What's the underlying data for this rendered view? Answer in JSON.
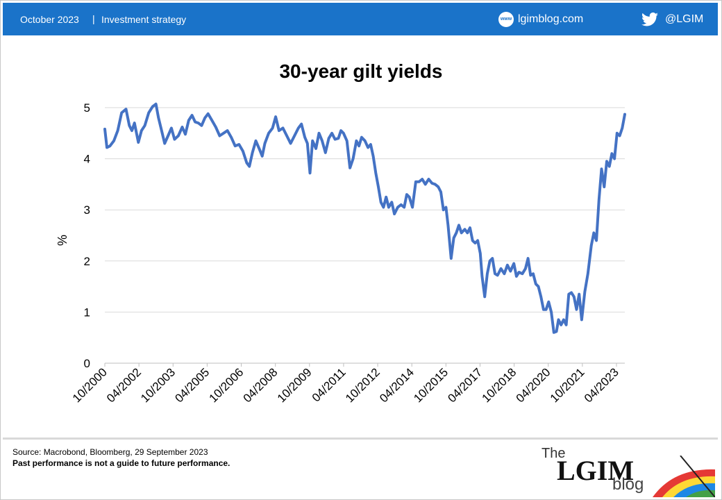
{
  "header": {
    "date": "October 2023",
    "separator": "|",
    "category": "Investment strategy",
    "website_icon": "www",
    "website": "lgimblog.com",
    "twitter_icon": "twitter-bird-icon",
    "twitter": "@LGIM"
  },
  "chart_data": {
    "type": "line",
    "title": "30-year gilt yields",
    "xlabel": "",
    "ylabel": "%",
    "ylim": [
      0,
      5
    ],
    "yticks": [
      "0",
      "1",
      "2",
      "3",
      "4",
      "5"
    ],
    "xticks": [
      "10/2000",
      "04/2002",
      "10/2003",
      "04/2005",
      "10/2006",
      "04/2008",
      "10/2009",
      "04/2011",
      "10/2012",
      "04/2014",
      "10/2015",
      "04/2017",
      "10/2018",
      "04/2020",
      "10/2021",
      "04/2023"
    ],
    "grid": true,
    "line_color": "#4472c4",
    "series": [
      {
        "points": [
          [
            0,
            4.58
          ],
          [
            0.08,
            4.22
          ],
          [
            0.2,
            4.25
          ],
          [
            0.35,
            4.35
          ],
          [
            0.5,
            4.55
          ],
          [
            0.65,
            4.9
          ],
          [
            0.82,
            4.97
          ],
          [
            0.95,
            4.65
          ],
          [
            1.05,
            4.55
          ],
          [
            1.15,
            4.7
          ],
          [
            1.3,
            4.32
          ],
          [
            1.42,
            4.55
          ],
          [
            1.55,
            4.65
          ],
          [
            1.7,
            4.9
          ],
          [
            1.85,
            5.02
          ],
          [
            1.98,
            5.07
          ],
          [
            2.08,
            4.8
          ],
          [
            2.2,
            4.55
          ],
          [
            2.32,
            4.3
          ],
          [
            2.45,
            4.45
          ],
          [
            2.58,
            4.6
          ],
          [
            2.7,
            4.38
          ],
          [
            2.85,
            4.45
          ],
          [
            3.0,
            4.62
          ],
          [
            3.12,
            4.48
          ],
          [
            3.25,
            4.75
          ],
          [
            3.38,
            4.85
          ],
          [
            3.5,
            4.72
          ],
          [
            3.62,
            4.7
          ],
          [
            3.75,
            4.65
          ],
          [
            3.88,
            4.8
          ],
          [
            4.0,
            4.88
          ],
          [
            4.15,
            4.75
          ],
          [
            4.3,
            4.62
          ],
          [
            4.45,
            4.45
          ],
          [
            4.6,
            4.5
          ],
          [
            4.75,
            4.55
          ],
          [
            4.9,
            4.42
          ],
          [
            5.05,
            4.25
          ],
          [
            5.2,
            4.28
          ],
          [
            5.35,
            4.15
          ],
          [
            5.5,
            3.92
          ],
          [
            5.6,
            3.85
          ],
          [
            5.72,
            4.12
          ],
          [
            5.85,
            4.35
          ],
          [
            5.98,
            4.2
          ],
          [
            6.1,
            4.05
          ],
          [
            6.2,
            4.3
          ],
          [
            6.35,
            4.5
          ],
          [
            6.5,
            4.6
          ],
          [
            6.62,
            4.82
          ],
          [
            6.75,
            4.55
          ],
          [
            6.9,
            4.6
          ],
          [
            7.05,
            4.45
          ],
          [
            7.2,
            4.3
          ],
          [
            7.35,
            4.45
          ],
          [
            7.5,
            4.6
          ],
          [
            7.62,
            4.68
          ],
          [
            7.75,
            4.42
          ],
          [
            7.85,
            4.3
          ],
          [
            7.95,
            3.72
          ],
          [
            8.05,
            4.35
          ],
          [
            8.18,
            4.2
          ],
          [
            8.3,
            4.5
          ],
          [
            8.42,
            4.35
          ],
          [
            8.55,
            4.12
          ],
          [
            8.68,
            4.4
          ],
          [
            8.8,
            4.5
          ],
          [
            8.92,
            4.38
          ],
          [
            9.05,
            4.4
          ],
          [
            9.15,
            4.55
          ],
          [
            9.25,
            4.5
          ],
          [
            9.38,
            4.35
          ],
          [
            9.5,
            3.82
          ],
          [
            9.62,
            4.0
          ],
          [
            9.75,
            4.35
          ],
          [
            9.85,
            4.25
          ],
          [
            9.95,
            4.42
          ],
          [
            10.08,
            4.35
          ],
          [
            10.2,
            4.22
          ],
          [
            10.3,
            4.28
          ],
          [
            10.4,
            4.05
          ],
          [
            10.5,
            3.72
          ],
          [
            10.6,
            3.45
          ],
          [
            10.7,
            3.15
          ],
          [
            10.8,
            3.05
          ],
          [
            10.9,
            3.25
          ],
          [
            11.0,
            3.05
          ],
          [
            11.12,
            3.15
          ],
          [
            11.22,
            2.92
          ],
          [
            11.35,
            3.05
          ],
          [
            11.48,
            3.1
          ],
          [
            11.6,
            3.05
          ],
          [
            11.7,
            3.3
          ],
          [
            11.8,
            3.25
          ],
          [
            11.92,
            3.05
          ],
          [
            12.05,
            3.55
          ],
          [
            12.18,
            3.55
          ],
          [
            12.3,
            3.6
          ],
          [
            12.42,
            3.5
          ],
          [
            12.55,
            3.6
          ],
          [
            12.68,
            3.52
          ],
          [
            12.8,
            3.5
          ],
          [
            12.92,
            3.45
          ],
          [
            13.02,
            3.35
          ],
          [
            13.12,
            3.0
          ],
          [
            13.22,
            3.05
          ],
          [
            13.3,
            2.7
          ],
          [
            13.42,
            2.05
          ],
          [
            13.52,
            2.45
          ],
          [
            13.62,
            2.55
          ],
          [
            13.72,
            2.7
          ],
          [
            13.82,
            2.55
          ],
          [
            13.95,
            2.62
          ],
          [
            14.05,
            2.55
          ],
          [
            14.15,
            2.65
          ],
          [
            14.25,
            2.4
          ],
          [
            14.35,
            2.35
          ],
          [
            14.45,
            2.4
          ],
          [
            14.55,
            2.15
          ],
          [
            14.62,
            1.7
          ],
          [
            14.72,
            1.3
          ],
          [
            14.82,
            1.75
          ],
          [
            14.92,
            2.0
          ],
          [
            15.02,
            2.05
          ],
          [
            15.12,
            1.75
          ],
          [
            15.22,
            1.72
          ],
          [
            15.35,
            1.85
          ],
          [
            15.48,
            1.75
          ],
          [
            15.6,
            1.92
          ],
          [
            15.72,
            1.8
          ],
          [
            15.85,
            1.95
          ],
          [
            15.95,
            1.7
          ],
          [
            16.05,
            1.78
          ],
          [
            16.18,
            1.75
          ],
          [
            16.3,
            1.85
          ],
          [
            16.4,
            2.05
          ],
          [
            16.5,
            1.72
          ],
          [
            16.6,
            1.75
          ],
          [
            16.7,
            1.55
          ],
          [
            16.8,
            1.5
          ],
          [
            16.9,
            1.3
          ],
          [
            17.0,
            1.05
          ],
          [
            17.1,
            1.05
          ],
          [
            17.2,
            1.2
          ],
          [
            17.3,
            1.0
          ],
          [
            17.4,
            0.6
          ],
          [
            17.5,
            0.62
          ],
          [
            17.58,
            0.85
          ],
          [
            17.68,
            0.75
          ],
          [
            17.78,
            0.85
          ],
          [
            17.88,
            0.75
          ],
          [
            17.98,
            1.35
          ],
          [
            18.08,
            1.38
          ],
          [
            18.18,
            1.3
          ],
          [
            18.28,
            1.05
          ],
          [
            18.38,
            1.35
          ],
          [
            18.48,
            0.85
          ],
          [
            18.6,
            1.4
          ],
          [
            18.72,
            1.75
          ],
          [
            18.85,
            2.3
          ],
          [
            18.95,
            2.55
          ],
          [
            19.05,
            2.4
          ],
          [
            19.15,
            3.2
          ],
          [
            19.25,
            3.8
          ],
          [
            19.35,
            3.45
          ],
          [
            19.45,
            3.95
          ],
          [
            19.55,
            3.85
          ],
          [
            19.65,
            4.1
          ],
          [
            19.75,
            4.0
          ],
          [
            19.85,
            4.5
          ],
          [
            19.95,
            4.45
          ],
          [
            20.05,
            4.6
          ],
          [
            20.15,
            4.87
          ]
        ]
      }
    ]
  },
  "footer": {
    "source": "Source: Macrobond, Bloomberg, 29 September 2023",
    "disclaimer": "Past performance is not a guide to future performance."
  },
  "logo": {
    "the": "The",
    "main": "LGIM",
    "sub": "blog"
  }
}
